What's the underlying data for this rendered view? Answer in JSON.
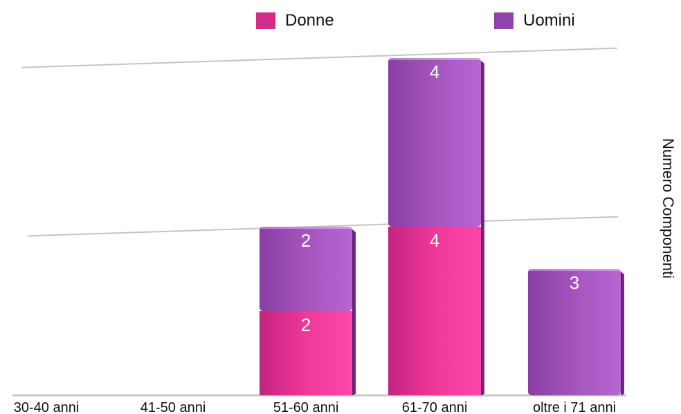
{
  "chart_data": {
    "type": "bar",
    "stacked": true,
    "categories": [
      "30-40 anni",
      "41-50 anni",
      "51-60 anni",
      "61-70 anni",
      "oltre i 71 anni"
    ],
    "series": [
      {
        "name": "Donne",
        "values": [
          0,
          0,
          2,
          4,
          0
        ],
        "color": "#e8308f"
      },
      {
        "name": "Uomini",
        "values": [
          0,
          0,
          2,
          4,
          3
        ],
        "color": "#9b4fb0"
      }
    ],
    "ylabel": "Numero Componenti",
    "xlabel": "",
    "ylim": [
      0,
      8
    ],
    "gridlines_at": [
      4,
      8
    ],
    "legend": "top",
    "grid": true,
    "style": "3d"
  }
}
